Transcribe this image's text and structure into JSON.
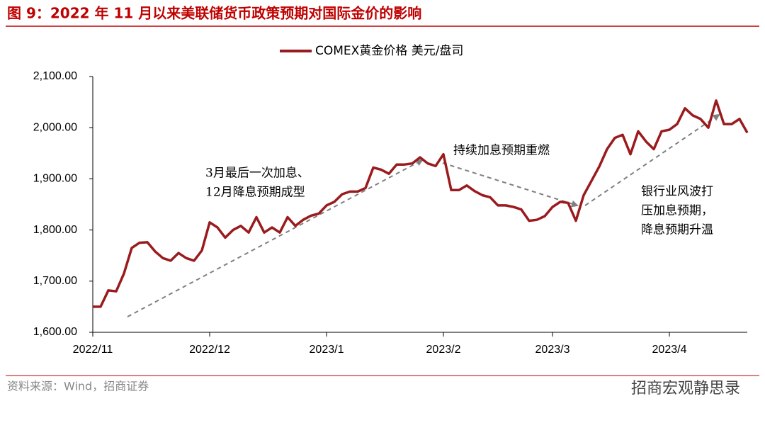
{
  "chart_data": {
    "type": "line",
    "title": "图 9：2022 年 11 月以来美联储货币政策预期对国际金价的影响",
    "source": "资料来源：Wind，招商证券",
    "watermark": "招商宏观静思录",
    "categories": [
      "2022/11",
      null,
      null,
      null,
      null,
      null,
      null,
      null,
      null,
      null,
      null,
      null,
      null,
      null,
      null,
      "2022/12",
      null,
      null,
      null,
      null,
      null,
      null,
      null,
      null,
      null,
      null,
      null,
      null,
      null,
      null,
      "2023/1",
      null,
      null,
      null,
      null,
      null,
      null,
      null,
      null,
      null,
      null,
      null,
      null,
      null,
      null,
      "2023/2",
      null,
      null,
      null,
      null,
      null,
      null,
      null,
      null,
      null,
      null,
      null,
      null,
      null,
      "2023/3",
      null,
      null,
      null,
      null,
      null,
      null,
      null,
      null,
      null,
      null,
      null,
      null,
      null,
      null,
      "2023/4",
      null,
      null,
      null,
      null,
      null,
      null,
      null,
      null,
      null,
      null
    ],
    "series": [
      {
        "name": "COMEX黄金价格 美元/盘司",
        "color": "#9a1b1e",
        "values": [
          1650,
          1650,
          1682,
          1680,
          1715,
          1765,
          1775,
          1776,
          1758,
          1745,
          1740,
          1755,
          1745,
          1740,
          1760,
          1815,
          1805,
          1785,
          1800,
          1808,
          1795,
          1825,
          1795,
          1805,
          1795,
          1825,
          1808,
          1820,
          1828,
          1832,
          1848,
          1855,
          1870,
          1875,
          1875,
          1882,
          1922,
          1918,
          1910,
          1928,
          1928,
          1930,
          1942,
          1930,
          1925,
          1948,
          1878,
          1878,
          1887,
          1876,
          1868,
          1864,
          1848,
          1848,
          1845,
          1840,
          1818,
          1820,
          1827,
          1845,
          1855,
          1853,
          1818,
          1868,
          1896,
          1924,
          1958,
          1980,
          1986,
          1948,
          1993,
          1973,
          1958,
          1993,
          1996,
          2007,
          2038,
          2024,
          2017,
          2000,
          2053,
          2007,
          2007,
          2017,
          1990
        ]
      }
    ],
    "ylim": [
      1600,
      2100
    ],
    "yticks": [
      {
        "value": 1600,
        "label": "1,600.00"
      },
      {
        "value": 1700,
        "label": "1,700.00"
      },
      {
        "value": 1800,
        "label": "1,800.00"
      },
      {
        "value": 1900,
        "label": "1,900.00"
      },
      {
        "value": 2000,
        "label": "2,000.00"
      },
      {
        "value": 2100,
        "label": "2,100.00"
      }
    ],
    "legend": "top",
    "annotations": [
      {
        "lines": [
          "3月最后一次加息、",
          "12月降息预期成型"
        ]
      },
      {
        "lines": [
          "持续加息预期重燃"
        ]
      },
      {
        "lines": [
          "银行业风波打",
          "压加息预期，",
          "降息预期升温"
        ]
      }
    ]
  }
}
